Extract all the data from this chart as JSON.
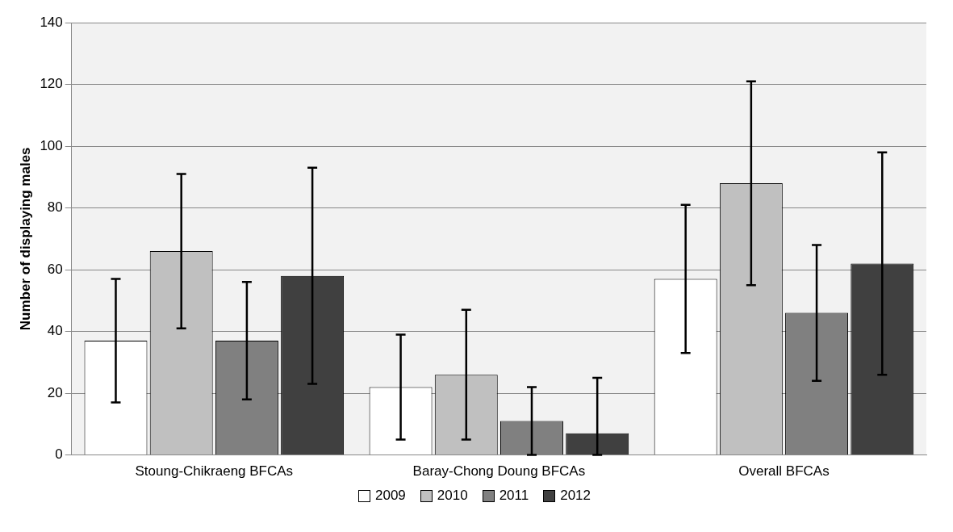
{
  "chart_data": {
    "type": "bar",
    "ylabel": "Number of displaying males",
    "categories": [
      "Stoung-Chikraeng BFCAs",
      "Baray-Chong Doung BFCAs",
      "Overall BFCAs"
    ],
    "series": [
      {
        "name": "2009",
        "color": "#ffffff",
        "values": [
          37,
          22,
          57
        ],
        "errors": [
          [
            17,
            57
          ],
          [
            5,
            39
          ],
          [
            33,
            81
          ]
        ]
      },
      {
        "name": "2010",
        "color": "#c0c0c0",
        "values": [
          66,
          26,
          88
        ],
        "errors": [
          [
            41,
            91
          ],
          [
            5,
            47
          ],
          [
            55,
            121
          ]
        ]
      },
      {
        "name": "2011",
        "color": "#808080",
        "values": [
          37,
          11,
          46
        ],
        "errors": [
          [
            18,
            56
          ],
          [
            0,
            22
          ],
          [
            24,
            68
          ]
        ]
      },
      {
        "name": "2012",
        "color": "#404040",
        "values": [
          58,
          7,
          62
        ],
        "errors": [
          [
            23,
            93
          ],
          [
            0,
            25
          ],
          [
            26,
            98
          ]
        ]
      }
    ],
    "ylim": [
      0,
      140
    ],
    "yticks": [
      0,
      20,
      40,
      60,
      80,
      100,
      120,
      140
    ],
    "grid": "y",
    "legend": "bottom"
  }
}
